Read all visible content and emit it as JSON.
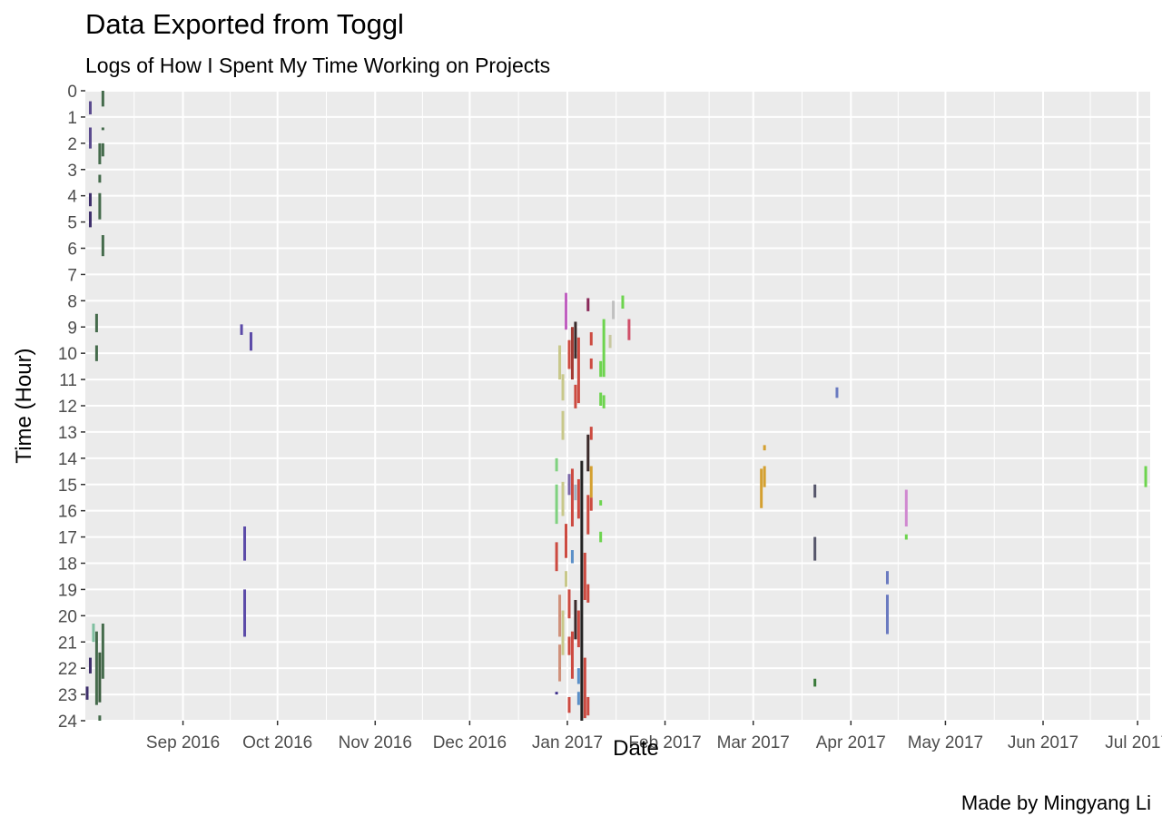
{
  "chart_data": {
    "type": "bar",
    "geom": "vertical segments (time intervals per day)",
    "title": "Data Exported from Toggl",
    "subtitle": "Logs of How I Spent My Time Working on Projects",
    "xlabel": "Date",
    "ylabel": "Time (Hour)",
    "caption": "Made by Mingyang Li",
    "xlim": [
      "2016-08-01",
      "2017-07-05"
    ],
    "ylim": [
      0,
      24
    ],
    "y_reversed": true,
    "x_ticks": [
      {
        "date": "2016-09-01",
        "label": "Sep 2016"
      },
      {
        "date": "2016-10-01",
        "label": "Oct 2016"
      },
      {
        "date": "2016-11-01",
        "label": "Nov 2016"
      },
      {
        "date": "2016-12-01",
        "label": "Dec 2016"
      },
      {
        "date": "2017-01-01",
        "label": "Jan 2017"
      },
      {
        "date": "2017-02-01",
        "label": "Feb 2017"
      },
      {
        "date": "2017-03-01",
        "label": "Mar 2017"
      },
      {
        "date": "2017-04-01",
        "label": "Apr 2017"
      },
      {
        "date": "2017-05-01",
        "label": "May 2017"
      },
      {
        "date": "2017-06-01",
        "label": "Jun 2017"
      },
      {
        "date": "2017-07-01",
        "label": "Jul 2017"
      }
    ],
    "y_ticks": [
      0,
      1,
      2,
      3,
      4,
      5,
      6,
      7,
      8,
      9,
      10,
      11,
      12,
      13,
      14,
      15,
      16,
      17,
      18,
      19,
      20,
      21,
      22,
      23,
      24
    ],
    "grid": true,
    "legend": "none",
    "colors": {
      "panel": "#ebebeb",
      "gridline": "#ffffff"
    },
    "segments": [
      {
        "date": "2016-08-01",
        "start": 22.7,
        "end": 23.2,
        "color": "#3e2f6b"
      },
      {
        "date": "2016-08-02",
        "start": 0.4,
        "end": 0.9,
        "color": "#5a4a8e"
      },
      {
        "date": "2016-08-02",
        "start": 1.4,
        "end": 2.2,
        "color": "#5a4a8e"
      },
      {
        "date": "2016-08-02",
        "start": 3.9,
        "end": 4.4,
        "color": "#3e2f6b"
      },
      {
        "date": "2016-08-02",
        "start": 4.6,
        "end": 5.2,
        "color": "#3e2f6b"
      },
      {
        "date": "2016-08-02",
        "start": 21.6,
        "end": 22.2,
        "color": "#3e2f6b"
      },
      {
        "date": "2016-08-03",
        "start": 20.3,
        "end": 21.0,
        "color": "#7fbfa0"
      },
      {
        "date": "2016-08-04",
        "start": 8.5,
        "end": 9.2,
        "color": "#456b4c"
      },
      {
        "date": "2016-08-04",
        "start": 9.7,
        "end": 10.3,
        "color": "#456b4c"
      },
      {
        "date": "2016-08-04",
        "start": 20.6,
        "end": 23.4,
        "color": "#456b4c"
      },
      {
        "date": "2016-08-05",
        "start": 2.0,
        "end": 2.8,
        "color": "#456b4c"
      },
      {
        "date": "2016-08-05",
        "start": 3.2,
        "end": 3.5,
        "color": "#456b4c"
      },
      {
        "date": "2016-08-05",
        "start": 3.9,
        "end": 4.9,
        "color": "#456b4c"
      },
      {
        "date": "2016-08-05",
        "start": 21.4,
        "end": 23.3,
        "color": "#3b5e3f"
      },
      {
        "date": "2016-08-05",
        "start": 23.8,
        "end": 24.0,
        "color": "#456b4c"
      },
      {
        "date": "2016-08-06",
        "start": 0.0,
        "end": 0.6,
        "color": "#456b4c"
      },
      {
        "date": "2016-08-06",
        "start": 1.4,
        "end": 1.5,
        "color": "#456b4c"
      },
      {
        "date": "2016-08-06",
        "start": 2.0,
        "end": 2.5,
        "color": "#456b4c"
      },
      {
        "date": "2016-08-06",
        "start": 5.5,
        "end": 6.3,
        "color": "#456b4c"
      },
      {
        "date": "2016-08-06",
        "start": 20.3,
        "end": 22.4,
        "color": "#456b4c"
      },
      {
        "date": "2016-09-19",
        "start": 8.9,
        "end": 9.3,
        "color": "#5b4aa8"
      },
      {
        "date": "2016-09-20",
        "start": 16.6,
        "end": 17.9,
        "color": "#5b4aa8"
      },
      {
        "date": "2016-09-20",
        "start": 19.0,
        "end": 20.8,
        "color": "#5b4aa8"
      },
      {
        "date": "2016-09-22",
        "start": 9.2,
        "end": 9.9,
        "color": "#5b4aa8"
      },
      {
        "date": "2016-12-28",
        "start": 14.0,
        "end": 14.5,
        "color": "#7fd17f"
      },
      {
        "date": "2016-12-28",
        "start": 15.0,
        "end": 16.5,
        "color": "#7fd17f"
      },
      {
        "date": "2016-12-28",
        "start": 17.2,
        "end": 18.3,
        "color": "#cc4a40"
      },
      {
        "date": "2016-12-28",
        "start": 22.9,
        "end": 23.0,
        "color": "#3e2f8b"
      },
      {
        "date": "2016-12-29",
        "start": 9.7,
        "end": 11.0,
        "color": "#c8c88a"
      },
      {
        "date": "2016-12-29",
        "start": 19.2,
        "end": 20.8,
        "color": "#d0907a"
      },
      {
        "date": "2016-12-29",
        "start": 21.1,
        "end": 22.5,
        "color": "#d0907a"
      },
      {
        "date": "2016-12-30",
        "start": 10.8,
        "end": 11.8,
        "color": "#c8c88a"
      },
      {
        "date": "2016-12-30",
        "start": 12.2,
        "end": 13.3,
        "color": "#c8c88a"
      },
      {
        "date": "2016-12-30",
        "start": 14.9,
        "end": 16.2,
        "color": "#c8c88a"
      },
      {
        "date": "2016-12-30",
        "start": 19.8,
        "end": 21.5,
        "color": "#c8c88a"
      },
      {
        "date": "2016-12-31",
        "start": 7.7,
        "end": 9.1,
        "color": "#c05fc0"
      },
      {
        "date": "2016-12-31",
        "start": 16.5,
        "end": 17.8,
        "color": "#cc4a40"
      },
      {
        "date": "2016-12-31",
        "start": 18.3,
        "end": 18.9,
        "color": "#c8c88a"
      },
      {
        "date": "2017-01-01",
        "start": 9.5,
        "end": 10.6,
        "color": "#cc4a40"
      },
      {
        "date": "2017-01-01",
        "start": 14.6,
        "end": 15.4,
        "color": "#7b68a8"
      },
      {
        "date": "2017-01-01",
        "start": 19.0,
        "end": 20.1,
        "color": "#cc4a40"
      },
      {
        "date": "2017-01-01",
        "start": 20.8,
        "end": 21.5,
        "color": "#cc4a40"
      },
      {
        "date": "2017-01-01",
        "start": 23.1,
        "end": 23.7,
        "color": "#cc4a40"
      },
      {
        "date": "2017-01-02",
        "start": 9.0,
        "end": 11.0,
        "color": "#a33a33"
      },
      {
        "date": "2017-01-02",
        "start": 14.4,
        "end": 16.6,
        "color": "#cc4a40"
      },
      {
        "date": "2017-01-02",
        "start": 17.5,
        "end": 18.0,
        "color": "#5a8fc8"
      },
      {
        "date": "2017-01-02",
        "start": 20.6,
        "end": 22.4,
        "color": "#cc4a40"
      },
      {
        "date": "2017-01-03",
        "start": 8.8,
        "end": 10.2,
        "color": "#3a2a2a"
      },
      {
        "date": "2017-01-03",
        "start": 11.2,
        "end": 12.1,
        "color": "#cc4a40"
      },
      {
        "date": "2017-01-03",
        "start": 15.0,
        "end": 15.6,
        "color": "#a0b0c0"
      },
      {
        "date": "2017-01-03",
        "start": 19.4,
        "end": 20.9,
        "color": "#3a2a2a"
      },
      {
        "date": "2017-01-04",
        "start": 9.4,
        "end": 11.9,
        "color": "#cc4a40"
      },
      {
        "date": "2017-01-04",
        "start": 14.8,
        "end": 16.3,
        "color": "#cc4a40"
      },
      {
        "date": "2017-01-04",
        "start": 19.8,
        "end": 21.2,
        "color": "#cc4a40"
      },
      {
        "date": "2017-01-04",
        "start": 22.0,
        "end": 22.6,
        "color": "#5a8fc8"
      },
      {
        "date": "2017-01-04",
        "start": 22.9,
        "end": 23.4,
        "color": "#5a8fc8"
      },
      {
        "date": "2017-01-05",
        "start": 14.1,
        "end": 24.0,
        "color": "#222222"
      },
      {
        "date": "2017-01-06",
        "start": 17.6,
        "end": 19.4,
        "color": "#cc4a40"
      },
      {
        "date": "2017-01-06",
        "start": 21.6,
        "end": 23.9,
        "color": "#cc4a40"
      },
      {
        "date": "2017-01-07",
        "start": 7.9,
        "end": 8.4,
        "color": "#8a2a5a"
      },
      {
        "date": "2017-01-07",
        "start": 13.1,
        "end": 14.5,
        "color": "#3a2a2a"
      },
      {
        "date": "2017-01-07",
        "start": 15.4,
        "end": 16.9,
        "color": "#cc4a40"
      },
      {
        "date": "2017-01-07",
        "start": 18.8,
        "end": 19.5,
        "color": "#cc4a40"
      },
      {
        "date": "2017-01-07",
        "start": 23.1,
        "end": 23.8,
        "color": "#cc4a40"
      },
      {
        "date": "2017-01-08",
        "start": 9.2,
        "end": 9.7,
        "color": "#cc4a40"
      },
      {
        "date": "2017-01-08",
        "start": 10.2,
        "end": 10.6,
        "color": "#cc4a40"
      },
      {
        "date": "2017-01-08",
        "start": 12.8,
        "end": 13.3,
        "color": "#cc4a40"
      },
      {
        "date": "2017-01-08",
        "start": 14.3,
        "end": 15.5,
        "color": "#d4a030"
      },
      {
        "date": "2017-01-08",
        "start": 15.5,
        "end": 16.0,
        "color": "#cc4a40"
      },
      {
        "date": "2017-01-11",
        "start": 10.3,
        "end": 10.9,
        "color": "#6dd44e"
      },
      {
        "date": "2017-01-11",
        "start": 11.5,
        "end": 12.0,
        "color": "#6dd44e"
      },
      {
        "date": "2017-01-11",
        "start": 15.6,
        "end": 15.8,
        "color": "#6dd44e"
      },
      {
        "date": "2017-01-11",
        "start": 16.8,
        "end": 17.2,
        "color": "#6dd44e"
      },
      {
        "date": "2017-01-12",
        "start": 8.7,
        "end": 10.9,
        "color": "#6dd44e"
      },
      {
        "date": "2017-01-12",
        "start": 11.6,
        "end": 12.1,
        "color": "#6dd44e"
      },
      {
        "date": "2017-01-14",
        "start": 9.3,
        "end": 9.8,
        "color": "#c8c8a0"
      },
      {
        "date": "2017-01-15",
        "start": 8.0,
        "end": 8.7,
        "color": "#c0c0c0"
      },
      {
        "date": "2017-01-18",
        "start": 7.8,
        "end": 8.3,
        "color": "#6dd44e"
      },
      {
        "date": "2017-01-20",
        "start": 8.7,
        "end": 9.5,
        "color": "#d0506a"
      },
      {
        "date": "2017-03-03",
        "start": 14.4,
        "end": 15.9,
        "color": "#d4a030"
      },
      {
        "date": "2017-03-04",
        "start": 13.5,
        "end": 13.7,
        "color": "#d4a030"
      },
      {
        "date": "2017-03-04",
        "start": 14.3,
        "end": 15.1,
        "color": "#d4a030"
      },
      {
        "date": "2017-03-20",
        "start": 15.0,
        "end": 15.5,
        "color": "#55556a"
      },
      {
        "date": "2017-03-20",
        "start": 17.0,
        "end": 17.9,
        "color": "#55556a"
      },
      {
        "date": "2017-03-20",
        "start": 22.4,
        "end": 22.7,
        "color": "#3a7a3a"
      },
      {
        "date": "2017-03-27",
        "start": 11.3,
        "end": 11.7,
        "color": "#6a7ac0"
      },
      {
        "date": "2017-04-12",
        "start": 18.3,
        "end": 18.8,
        "color": "#6a7ac0"
      },
      {
        "date": "2017-04-12",
        "start": 19.2,
        "end": 20.7,
        "color": "#6a7ac0"
      },
      {
        "date": "2017-04-18",
        "start": 15.2,
        "end": 16.6,
        "color": "#d088d0"
      },
      {
        "date": "2017-04-18",
        "start": 16.9,
        "end": 17.1,
        "color": "#6dd44e"
      },
      {
        "date": "2017-07-03",
        "start": 14.3,
        "end": 15.1,
        "color": "#6dd44e"
      }
    ]
  }
}
